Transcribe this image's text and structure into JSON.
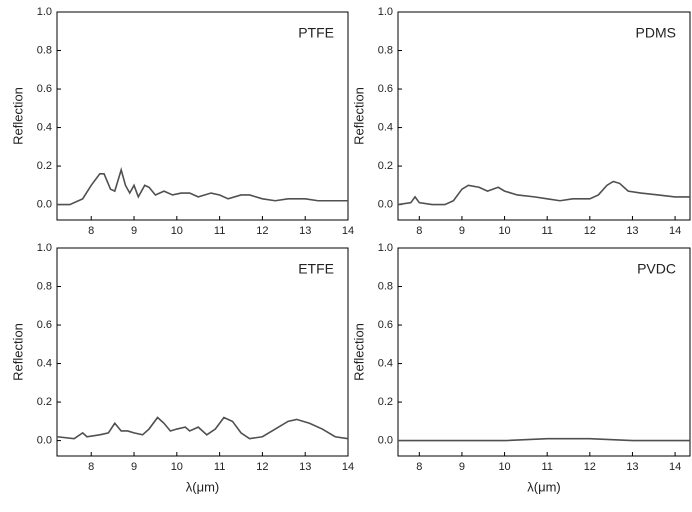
{
  "chart_data": [
    {
      "type": "line",
      "title": "PTFE",
      "y_label": "Reflection",
      "x": [
        7.2,
        7.5,
        7.8,
        8.0,
        8.2,
        8.3,
        8.45,
        8.55,
        8.7,
        8.8,
        8.9,
        9.0,
        9.1,
        9.25,
        9.35,
        9.5,
        9.7,
        9.9,
        10.1,
        10.3,
        10.5,
        10.8,
        11.0,
        11.2,
        11.5,
        11.7,
        12.0,
        12.3,
        12.6,
        13.0,
        13.3,
        13.6,
        14.0
      ],
      "series": [
        {
          "color": "#505050",
          "values": [
            0.0,
            0.0,
            0.03,
            0.1,
            0.16,
            0.16,
            0.08,
            0.07,
            0.18,
            0.1,
            0.06,
            0.1,
            0.04,
            0.1,
            0.09,
            0.05,
            0.07,
            0.05,
            0.06,
            0.06,
            0.04,
            0.06,
            0.05,
            0.03,
            0.05,
            0.05,
            0.03,
            0.02,
            0.03,
            0.03,
            0.02,
            0.02,
            0.02
          ]
        }
      ],
      "xlim": [
        7.2,
        14
      ],
      "xticks": [
        8,
        9,
        10,
        11,
        12,
        13,
        14
      ],
      "ylim": [
        -0.08,
        1.0
      ],
      "yticks": [
        {
          "value": 0,
          "label": "0.0"
        },
        0.2,
        0.4,
        0.6,
        0.8,
        {
          "value": 1,
          "label": "1.0"
        }
      ]
    },
    {
      "type": "line",
      "title": "PDMS",
      "y_label": "Reflection",
      "x": [
        7.5,
        7.8,
        7.9,
        8.0,
        8.3,
        8.6,
        8.8,
        9.0,
        9.15,
        9.4,
        9.6,
        9.85,
        10.0,
        10.3,
        10.7,
        11.0,
        11.3,
        11.6,
        11.8,
        12.0,
        12.2,
        12.4,
        12.55,
        12.7,
        12.9,
        13.2,
        13.6,
        14.0,
        14.35
      ],
      "series": [
        {
          "color": "#505050",
          "values": [
            0.0,
            0.01,
            0.04,
            0.01,
            0.0,
            0.0,
            0.02,
            0.08,
            0.1,
            0.09,
            0.07,
            0.09,
            0.07,
            0.05,
            0.04,
            0.03,
            0.02,
            0.03,
            0.03,
            0.03,
            0.05,
            0.1,
            0.12,
            0.11,
            0.07,
            0.06,
            0.05,
            0.04,
            0.04
          ]
        }
      ],
      "xlim": [
        7.5,
        14.35
      ],
      "xticks": [
        8,
        9,
        10,
        11,
        12,
        13,
        14
      ],
      "ylim": [
        -0.08,
        1.0
      ],
      "yticks": [
        {
          "value": 0,
          "label": "0.0"
        },
        0.2,
        0.4,
        0.6,
        0.8,
        {
          "value": 1,
          "label": "1.0"
        }
      ]
    },
    {
      "type": "line",
      "title": "ETFE",
      "y_label": "Reflection",
      "x_label": "λ(μm)",
      "x": [
        7.2,
        7.6,
        7.8,
        7.9,
        8.2,
        8.4,
        8.55,
        8.7,
        8.85,
        9.0,
        9.2,
        9.35,
        9.55,
        9.7,
        9.85,
        10.0,
        10.2,
        10.3,
        10.5,
        10.7,
        10.9,
        11.1,
        11.3,
        11.5,
        11.7,
        12.0,
        12.3,
        12.6,
        12.8,
        13.1,
        13.4,
        13.7,
        14.0
      ],
      "series": [
        {
          "color": "#505050",
          "values": [
            0.02,
            0.01,
            0.04,
            0.02,
            0.03,
            0.04,
            0.09,
            0.05,
            0.05,
            0.04,
            0.03,
            0.06,
            0.12,
            0.09,
            0.05,
            0.06,
            0.07,
            0.05,
            0.07,
            0.03,
            0.06,
            0.12,
            0.1,
            0.04,
            0.01,
            0.02,
            0.06,
            0.1,
            0.11,
            0.09,
            0.06,
            0.02,
            0.01
          ]
        }
      ],
      "xlim": [
        7.2,
        14
      ],
      "xticks": [
        8,
        9,
        10,
        11,
        12,
        13,
        14
      ],
      "ylim": [
        -0.08,
        1.0
      ],
      "yticks": [
        {
          "value": 0,
          "label": "0.0"
        },
        0.2,
        0.4,
        0.6,
        0.8,
        {
          "value": 1,
          "label": "1.0"
        }
      ]
    },
    {
      "type": "line",
      "title": "PVDC",
      "y_label": "Reflection",
      "x_label": "λ(μm)",
      "x": [
        7.5,
        9,
        10,
        11,
        12,
        13,
        14.35
      ],
      "series": [
        {
          "color": "#505050",
          "values": [
            0.0,
            0.0,
            0.0,
            0.01,
            0.01,
            0.0,
            0.0
          ]
        }
      ],
      "xlim": [
        7.5,
        14.35
      ],
      "xticks": [
        8,
        9,
        10,
        11,
        12,
        13,
        14
      ],
      "ylim": [
        -0.08,
        1.0
      ],
      "yticks": [
        {
          "value": 0,
          "label": "0.0"
        },
        0.2,
        0.4,
        0.6,
        0.8,
        {
          "value": 1,
          "label": "1.0"
        }
      ]
    }
  ]
}
